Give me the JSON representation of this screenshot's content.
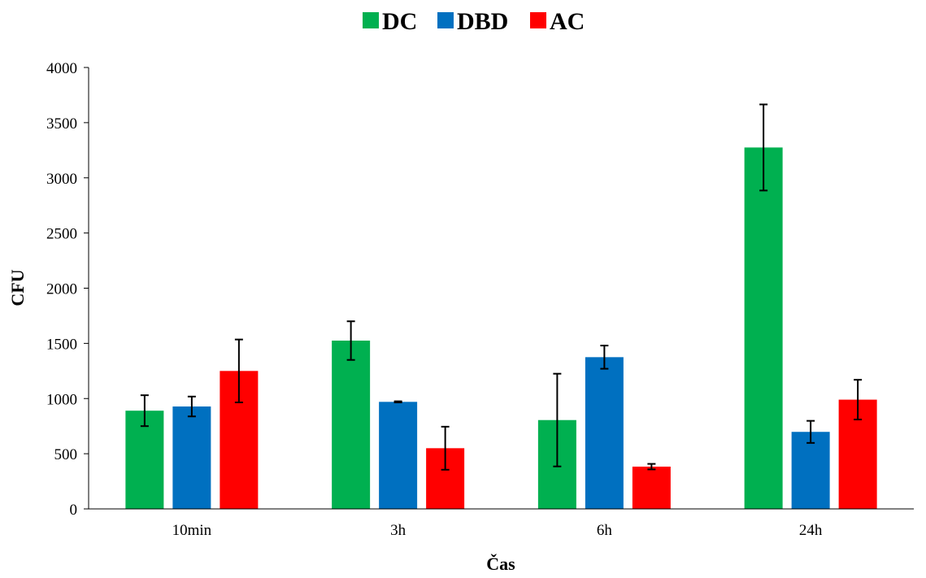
{
  "chart_data": {
    "type": "bar",
    "categories": [
      "10min",
      "3h",
      "6h",
      "24h"
    ],
    "series": [
      {
        "name": "DC",
        "color": "#00B050",
        "values": [
          890,
          1525,
          805,
          3275
        ],
        "errors": [
          140,
          175,
          420,
          390
        ]
      },
      {
        "name": "DBD",
        "color": "#0070C0",
        "values": [
          928,
          970,
          1375,
          698
        ],
        "errors": [
          90,
          5,
          105,
          100
        ]
      },
      {
        "name": "AC",
        "color": "#FF0000",
        "values": [
          1250,
          550,
          383,
          990
        ],
        "errors": [
          285,
          195,
          25,
          180
        ]
      }
    ],
    "xlabel": "Čas",
    "ylabel": "CFU",
    "ylim": [
      0,
      4000
    ],
    "yticks": [
      "0",
      "500",
      "1000",
      "1500",
      "2000",
      "2500",
      "3000",
      "3500",
      "4000"
    ],
    "grid": false,
    "legend_position": "top-center"
  }
}
